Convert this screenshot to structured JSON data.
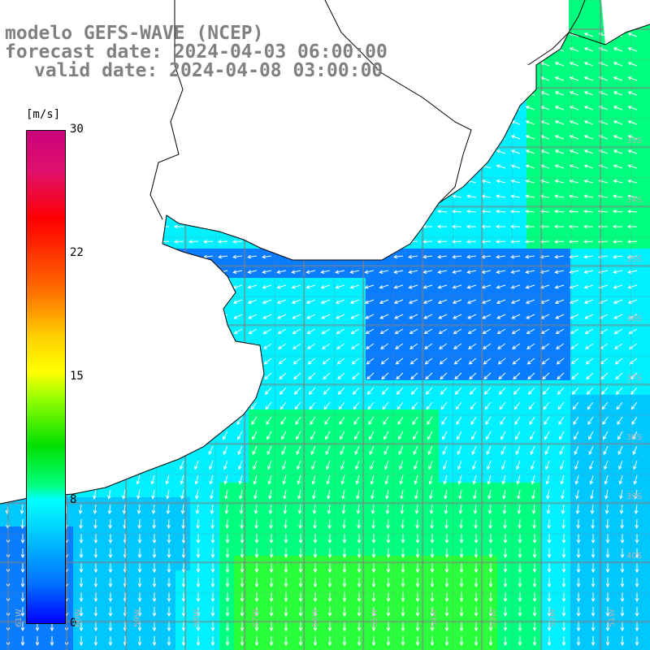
{
  "title": {
    "line1": "modelo GEFS-WAVE (NCEP)",
    "line2": "forecast date: 2024-04-03 06:00:00",
    "line3": "valid date: 2024-04-08 03:00:00"
  },
  "colorbar": {
    "unit": "[m/s]",
    "ticks": [
      "30",
      "22",
      "15",
      "8",
      "0"
    ],
    "tick_values": [
      30,
      22,
      15,
      8,
      0
    ],
    "range": [
      0,
      30
    ],
    "colors": [
      "#0000ff",
      "#0070ff",
      "#00c8ff",
      "#00ffff",
      "#00ff7f",
      "#00e000",
      "#ffff00",
      "#ff6a00",
      "#ff0000",
      "#c8007c"
    ]
  },
  "map": {
    "lat_labels": [
      "33S",
      "34S",
      "35S",
      "36S",
      "37S",
      "38S",
      "39S",
      "40S"
    ],
    "lon_labels": [
      "61W",
      "60W",
      "59W",
      "58W",
      "57W",
      "56W",
      "55W",
      "54W",
      "53W",
      "52W",
      "51W"
    ],
    "ocean_colors": {
      "blue": "#0a7cff",
      "light": "#00c8ff",
      "cyan": "#00f0ff",
      "green": "#00ff7f",
      "bright_green": "#2aff3c"
    },
    "land_color": "#ffffff",
    "grid_color": "#808080",
    "coast_color": "#000000",
    "arrow_color": "#ffffff"
  }
}
